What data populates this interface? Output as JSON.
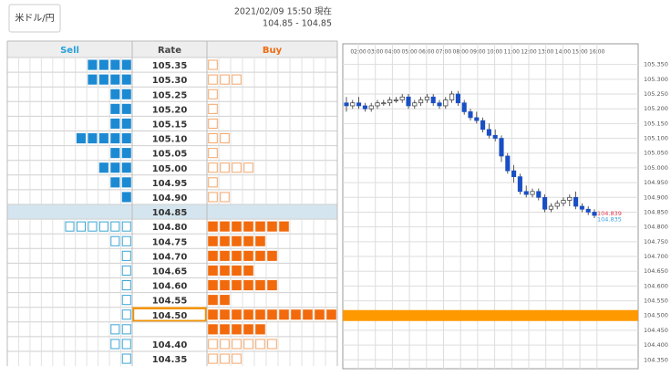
{
  "header": {
    "pair_button": "米ドル/円",
    "timestamp": "2021/02/09 15:50 現在",
    "range": "104.85 - 104.85"
  },
  "board": {
    "columns": [
      "Sell",
      "Rate",
      "Buy"
    ],
    "rows": [
      {
        "rate": "105.35",
        "sell": {
          "filled": 4,
          "open": 0
        },
        "buy": {
          "filled": 0,
          "open": 1
        }
      },
      {
        "rate": "105.30",
        "sell": {
          "filled": 4,
          "open": 0
        },
        "buy": {
          "filled": 0,
          "open": 3
        }
      },
      {
        "rate": "105.25",
        "sell": {
          "filled": 2,
          "open": 0
        },
        "buy": {
          "filled": 0,
          "open": 1
        }
      },
      {
        "rate": "105.20",
        "sell": {
          "filled": 2,
          "open": 0
        },
        "buy": {
          "filled": 0,
          "open": 1
        }
      },
      {
        "rate": "105.15",
        "sell": {
          "filled": 2,
          "open": 0
        },
        "buy": {
          "filled": 0,
          "open": 1
        }
      },
      {
        "rate": "105.10",
        "sell": {
          "filled": 5,
          "open": 0
        },
        "buy": {
          "filled": 0,
          "open": 2
        }
      },
      {
        "rate": "105.05",
        "sell": {
          "filled": 2,
          "open": 0
        },
        "buy": {
          "filled": 0,
          "open": 1
        }
      },
      {
        "rate": "105.00",
        "sell": {
          "filled": 3,
          "open": 0
        },
        "buy": {
          "filled": 0,
          "open": 4
        }
      },
      {
        "rate": "104.95",
        "sell": {
          "filled": 2,
          "open": 0
        },
        "buy": {
          "filled": 0,
          "open": 1
        }
      },
      {
        "rate": "104.90",
        "sell": {
          "filled": 1,
          "open": 0
        },
        "buy": {
          "filled": 0,
          "open": 2
        }
      },
      {
        "rate": "104.85",
        "highlight": "current",
        "sell": {
          "filled": 0,
          "open": 0
        },
        "buy": {
          "filled": 0,
          "open": 0
        }
      },
      {
        "rate": "104.80",
        "sell": {
          "filled": 0,
          "open": 6
        },
        "buy": {
          "filled": 7,
          "open": 0
        }
      },
      {
        "rate": "104.75",
        "sell": {
          "filled": 0,
          "open": 2
        },
        "buy": {
          "filled": 5,
          "open": 0
        }
      },
      {
        "rate": "104.70",
        "sell": {
          "filled": 0,
          "open": 1
        },
        "buy": {
          "filled": 6,
          "open": 0
        }
      },
      {
        "rate": "104.65",
        "sell": {
          "filled": 0,
          "open": 1
        },
        "buy": {
          "filled": 4,
          "open": 0
        }
      },
      {
        "rate": "104.60",
        "sell": {
          "filled": 0,
          "open": 1
        },
        "buy": {
          "filled": 6,
          "open": 0
        }
      },
      {
        "rate": "104.55",
        "sell": {
          "filled": 0,
          "open": 1
        },
        "buy": {
          "filled": 2,
          "open": 0
        }
      },
      {
        "rate": "104.50",
        "highlight": "selected",
        "sell": {
          "filled": 0,
          "open": 1
        },
        "buy": {
          "filled": 11,
          "open": 0
        }
      },
      {
        "rate": null,
        "sell": {
          "filled": 0,
          "open": 2
        },
        "buy": {
          "filled": 5,
          "open": 0
        }
      },
      {
        "rate": "104.40",
        "sell": {
          "filled": 0,
          "open": 2
        },
        "buy": {
          "filled": 0,
          "open": 6
        }
      },
      {
        "rate": "104.35",
        "sell": {
          "filled": 0,
          "open": 1
        },
        "buy": {
          "filled": 0,
          "open": 3
        }
      }
    ]
  },
  "chart": {
    "ylim": [
      104.32,
      105.42
    ],
    "yticks": [
      {
        "value": 105.35,
        "label": "105.350"
      },
      {
        "value": 105.3,
        "label": "105.300"
      },
      {
        "value": 105.25,
        "label": "105.250"
      },
      {
        "value": 105.2,
        "label": "105.200"
      },
      {
        "value": 105.15,
        "label": "105.150"
      },
      {
        "value": 105.1,
        "label": "105.100"
      },
      {
        "value": 105.05,
        "label": "105.050"
      },
      {
        "value": 105,
        "label": "105.000"
      },
      {
        "value": 104.95,
        "label": "104.950"
      },
      {
        "value": 104.9,
        "label": "104.900"
      },
      {
        "value": 104.85,
        "label": "104.850"
      },
      {
        "value": 104.8,
        "label": "104.800"
      },
      {
        "value": 104.75,
        "label": "104.750"
      },
      {
        "value": 104.7,
        "label": "104.700"
      },
      {
        "value": 104.65,
        "label": "104.650"
      },
      {
        "value": 104.6,
        "label": "104.600"
      },
      {
        "value": 104.55,
        "label": "104.550"
      },
      {
        "value": 104.5,
        "label": "104.500"
      },
      {
        "value": 104.45,
        "label": "104.450"
      },
      {
        "value": 104.4,
        "label": "104.400"
      },
      {
        "value": 104.35,
        "label": "104.350"
      }
    ],
    "xticks": [
      "02:00",
      "03:00",
      "04:00",
      "05:00",
      "06:00",
      "07:00",
      "08:00",
      "09:00",
      "10:00",
      "11:00",
      "12:00",
      "13:00",
      "14:00",
      "15:00",
      "16:00"
    ],
    "candles": [
      [
        105.22,
        105.24,
        105.19,
        105.21
      ],
      [
        105.21,
        105.23,
        105.2,
        105.22
      ],
      [
        105.22,
        105.24,
        105.2,
        105.21
      ],
      [
        105.21,
        105.22,
        105.19,
        105.2
      ],
      [
        105.2,
        105.22,
        105.19,
        105.21
      ],
      [
        105.21,
        105.23,
        105.2,
        105.22
      ],
      [
        105.22,
        105.23,
        105.21,
        105.22
      ],
      [
        105.22,
        105.24,
        105.21,
        105.23
      ],
      [
        105.23,
        105.24,
        105.22,
        105.23
      ],
      [
        105.23,
        105.25,
        105.22,
        105.24
      ],
      [
        105.24,
        105.25,
        105.2,
        105.21
      ],
      [
        105.21,
        105.23,
        105.2,
        105.22
      ],
      [
        105.22,
        105.24,
        105.21,
        105.23
      ],
      [
        105.23,
        105.25,
        105.22,
        105.24
      ],
      [
        105.24,
        105.25,
        105.21,
        105.22
      ],
      [
        105.22,
        105.23,
        105.2,
        105.21
      ],
      [
        105.21,
        105.24,
        105.2,
        105.23
      ],
      [
        105.23,
        105.26,
        105.22,
        105.25
      ],
      [
        105.25,
        105.26,
        105.21,
        105.22
      ],
      [
        105.22,
        105.23,
        105.18,
        105.19
      ],
      [
        105.19,
        105.2,
        105.16,
        105.17
      ],
      [
        105.17,
        105.19,
        105.15,
        105.16
      ],
      [
        105.16,
        105.17,
        105.12,
        105.13
      ],
      [
        105.13,
        105.15,
        105.1,
        105.11
      ],
      [
        105.11,
        105.13,
        105.09,
        105.1
      ],
      [
        105.1,
        105.11,
        105.02,
        105.04
      ],
      [
        105.04,
        105.05,
        104.98,
        104.99
      ],
      [
        104.99,
        105.01,
        104.95,
        104.97
      ],
      [
        104.97,
        104.98,
        104.91,
        104.92
      ],
      [
        104.92,
        104.94,
        104.9,
        104.91
      ],
      [
        104.91,
        104.93,
        104.9,
        104.92
      ],
      [
        104.92,
        104.93,
        104.89,
        104.9
      ],
      [
        104.9,
        104.91,
        104.85,
        104.86
      ],
      [
        104.86,
        104.88,
        104.85,
        104.87
      ],
      [
        104.87,
        104.89,
        104.86,
        104.88
      ],
      [
        104.88,
        104.9,
        104.87,
        104.89
      ],
      [
        104.89,
        104.91,
        104.87,
        104.9
      ],
      [
        104.9,
        104.92,
        104.86,
        104.87
      ],
      [
        104.87,
        104.88,
        104.85,
        104.86
      ],
      [
        104.86,
        104.87,
        104.84,
        104.85
      ],
      [
        104.85,
        104.86,
        104.83,
        104.839
      ]
    ],
    "price_labels": [
      {
        "value": 104.839,
        "color": "#e8384f"
      },
      {
        "value": 104.835,
        "color": "#3aa0e0"
      }
    ],
    "band": {
      "value": 104.5,
      "color": "#ff9900"
    }
  }
}
